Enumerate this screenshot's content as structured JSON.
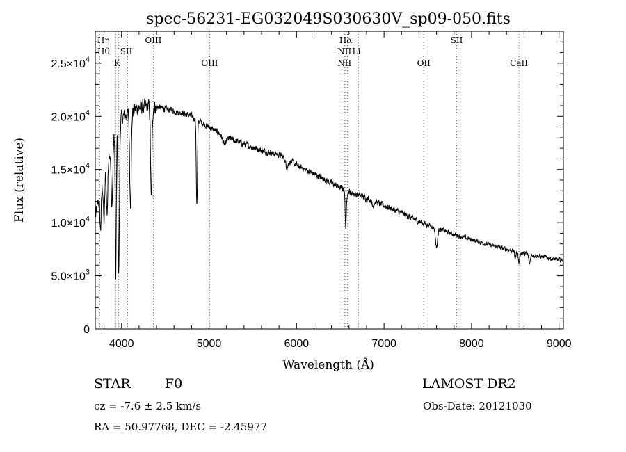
{
  "chart_data": {
    "type": "line",
    "title": "spec-56231-EG032049S030630V_sp09-050.fits",
    "xlabel": "Wavelength (Å)",
    "ylabel": "Flux (relative)",
    "xlim": [
      3700,
      9050
    ],
    "ylim": [
      0,
      28000
    ],
    "x_ticks": [
      4000,
      5000,
      6000,
      7000,
      8000,
      9000
    ],
    "x_tick_labels": [
      "4000",
      "5000",
      "6000",
      "7000",
      "8000",
      "9000"
    ],
    "y_ticks": [
      0,
      5000,
      10000,
      15000,
      20000,
      25000
    ],
    "y_tick_labels": [
      {
        "mantissa": "0",
        "exp": ""
      },
      {
        "mantissa": "5.0×10",
        "exp": "3"
      },
      {
        "mantissa": "1.0×10",
        "exp": "4"
      },
      {
        "mantissa": "1.5×10",
        "exp": "4"
      },
      {
        "mantissa": "2.0×10",
        "exp": "4"
      },
      {
        "mantissa": "2.5×10",
        "exp": "4"
      }
    ],
    "grid": false,
    "lines": [
      {
        "wavelength": 3750,
        "labels": [
          "Hη",
          "Hθ"
        ]
      },
      {
        "wavelength": 3934,
        "labels": [
          "K"
        ]
      },
      {
        "wavelength": 3968,
        "labels": []
      },
      {
        "wavelength": 4070,
        "labels": [
          "SII"
        ]
      },
      {
        "wavelength": 4363,
        "labels": [
          "OIII"
        ]
      },
      {
        "wavelength": 5007,
        "labels": [
          "OIII"
        ]
      },
      {
        "wavelength": 6548,
        "labels": [
          "NII"
        ]
      },
      {
        "wavelength": 6563,
        "labels": [
          "Hα"
        ]
      },
      {
        "wavelength": 6583,
        "labels": []
      },
      {
        "wavelength": 6708,
        "labels": [
          "Li"
        ]
      },
      {
        "wavelength": 7454,
        "labels": [
          "OII"
        ]
      },
      {
        "wavelength": 7830,
        "labels": [
          "SII"
        ]
      },
      {
        "wavelength": 8542,
        "labels": [
          "CaII"
        ]
      }
    ],
    "spectrum": {
      "continuum": {
        "x": [
          3700,
          3750,
          3800,
          3850,
          3900,
          3950,
          4000,
          4100,
          4200,
          4300,
          4400,
          4500,
          4600,
          4700,
          4800,
          4900,
          5000,
          5200,
          5400,
          5600,
          5800,
          6000,
          6200,
          6400,
          6600,
          6800,
          7000,
          7200,
          7400,
          7600,
          7800,
          8000,
          8200,
          8400,
          8600,
          8800,
          9000,
          9050
        ],
        "y": [
          10500,
          12500,
          14500,
          16500,
          18000,
          19200,
          19800,
          20400,
          20800,
          20900,
          20900,
          20700,
          20500,
          20300,
          20000,
          19500,
          19000,
          18000,
          17400,
          16800,
          16400,
          15400,
          14600,
          13700,
          12900,
          12300,
          11600,
          10900,
          10100,
          9500,
          8900,
          8400,
          7900,
          7500,
          7100,
          6800,
          6500,
          6500
        ]
      },
      "absorption": [
        {
          "x": 3760,
          "depth": 3500,
          "width": 8
        },
        {
          "x": 3800,
          "depth": 4500,
          "width": 8
        },
        {
          "x": 3835,
          "depth": 5000,
          "width": 8
        },
        {
          "x": 3890,
          "depth": 6000,
          "width": 10
        },
        {
          "x": 3934,
          "depth": 14500,
          "width": 6
        },
        {
          "x": 3968,
          "depth": 14000,
          "width": 8
        },
        {
          "x": 4102,
          "depth": 8500,
          "width": 9
        },
        {
          "x": 4340,
          "depth": 8800,
          "width": 8
        },
        {
          "x": 4861,
          "depth": 8000,
          "width": 7
        },
        {
          "x": 5175,
          "depth": 800,
          "width": 20
        },
        {
          "x": 5890,
          "depth": 700,
          "width": 15
        },
        {
          "x": 6563,
          "depth": 3500,
          "width": 7
        },
        {
          "x": 6870,
          "depth": 500,
          "width": 10
        },
        {
          "x": 7600,
          "depth": 1800,
          "width": 12
        },
        {
          "x": 8500,
          "depth": 600,
          "width": 8
        },
        {
          "x": 8542,
          "depth": 1000,
          "width": 8
        },
        {
          "x": 8662,
          "depth": 900,
          "width": 8
        }
      ],
      "noise_amplitude": 450,
      "noise_amplitude_blue": 1100
    }
  },
  "info": {
    "object_type": "STAR",
    "subclass": "F0",
    "survey": "LAMOST DR2",
    "redshift": "cz = -7.6 ± 2.5 km/s",
    "obs_date": "Obs-Date: 20121030",
    "coords": "RA =  50.97768, DEC =  -2.45977"
  }
}
